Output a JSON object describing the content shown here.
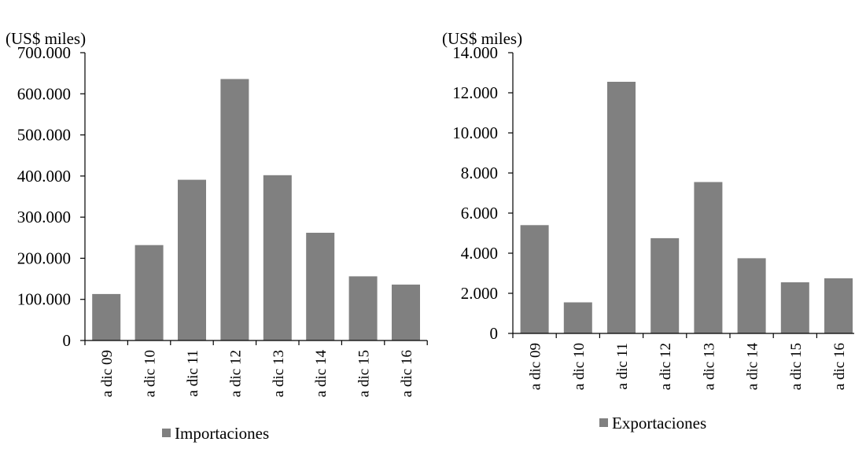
{
  "chart_data": [
    {
      "type": "bar",
      "unit_label": "(US$ miles)",
      "categories": [
        "a dic 09",
        "a dic 10",
        "a dic 11",
        "a dic 12",
        "a dic 13",
        "a dic 14",
        "a dic 15",
        "a dic 16"
      ],
      "series": [
        {
          "name": "Importaciones",
          "values": [
            113000,
            232000,
            391000,
            636000,
            402000,
            262000,
            156000,
            136000
          ]
        }
      ],
      "yticks": [
        "0",
        "100.000",
        "200.000",
        "300.000",
        "400.000",
        "500.000",
        "600.000",
        "700.000"
      ],
      "ylim": [
        0,
        700000
      ],
      "grid": false,
      "legend_position": "bottom",
      "bar_color": "#808080"
    },
    {
      "type": "bar",
      "unit_label": "(US$ miles)",
      "categories": [
        "a dic 09",
        "a dic 10",
        "a dic 11",
        "a dic 12",
        "a dic 13",
        "a dic 14",
        "a dic 15",
        "a dic 16"
      ],
      "series": [
        {
          "name": "Exportaciones",
          "values": [
            5400,
            1550,
            12550,
            4750,
            7550,
            3750,
            2550,
            2750
          ]
        }
      ],
      "yticks": [
        "0",
        "2.000",
        "4.000",
        "6.000",
        "8.000",
        "10.000",
        "12.000",
        "14.000"
      ],
      "ylim": [
        0,
        14000
      ],
      "grid": false,
      "legend_position": "bottom",
      "bar_color": "#808080"
    }
  ]
}
